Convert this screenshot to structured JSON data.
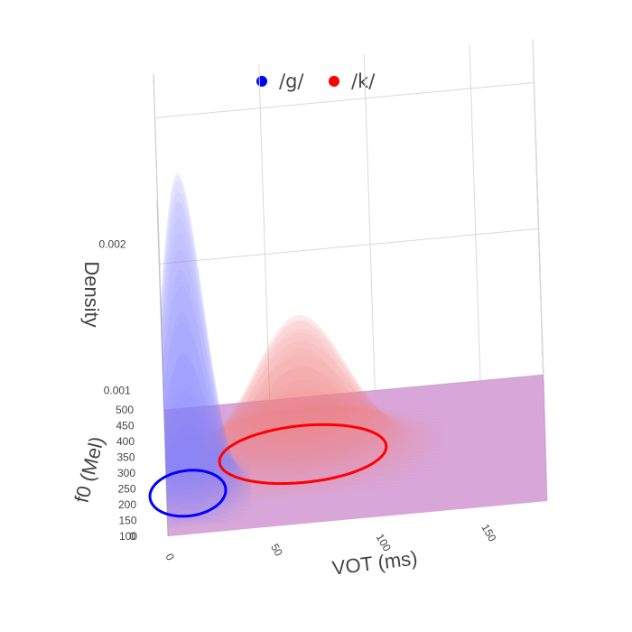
{
  "legend": [
    {
      "name": "/g/",
      "color": "#0000ff"
    },
    {
      "name": "/k/",
      "color": "#ff0000"
    }
  ],
  "chart_data": {
    "type": "surface3d",
    "title": "",
    "axes": {
      "x": {
        "label": "VOT (ms)",
        "ticks": [
          "0",
          "50",
          "100",
          "150"
        ],
        "range": [
          0,
          180
        ]
      },
      "y": {
        "label": "f0 (Mel)",
        "ticks": [
          "100",
          "150",
          "200",
          "250",
          "300",
          "350",
          "400",
          "450",
          "500"
        ],
        "range": [
          100,
          500
        ]
      },
      "z": {
        "label": "Density",
        "ticks": [
          "0",
          "0.001",
          "0.002"
        ],
        "range": [
          0,
          0.0023
        ]
      }
    },
    "grid": true,
    "legend_position": "top-center",
    "series": [
      {
        "name": "/g/",
        "color": "#0000ff",
        "surface_color": "#8080ff",
        "vot_mean": 10,
        "vot_sd": 10,
        "f0_mean": 230,
        "f0_sd": 40,
        "peak_density": 0.0022
      },
      {
        "name": "/k/",
        "color": "#ff0000",
        "surface_color": "#f08080",
        "vot_mean": 65,
        "vot_sd": 22,
        "f0_mean": 320,
        "f0_sd": 50,
        "peak_density": 0.00095
      }
    ],
    "floor_plane": {
      "density": 0,
      "color": "#c070c0"
    }
  }
}
